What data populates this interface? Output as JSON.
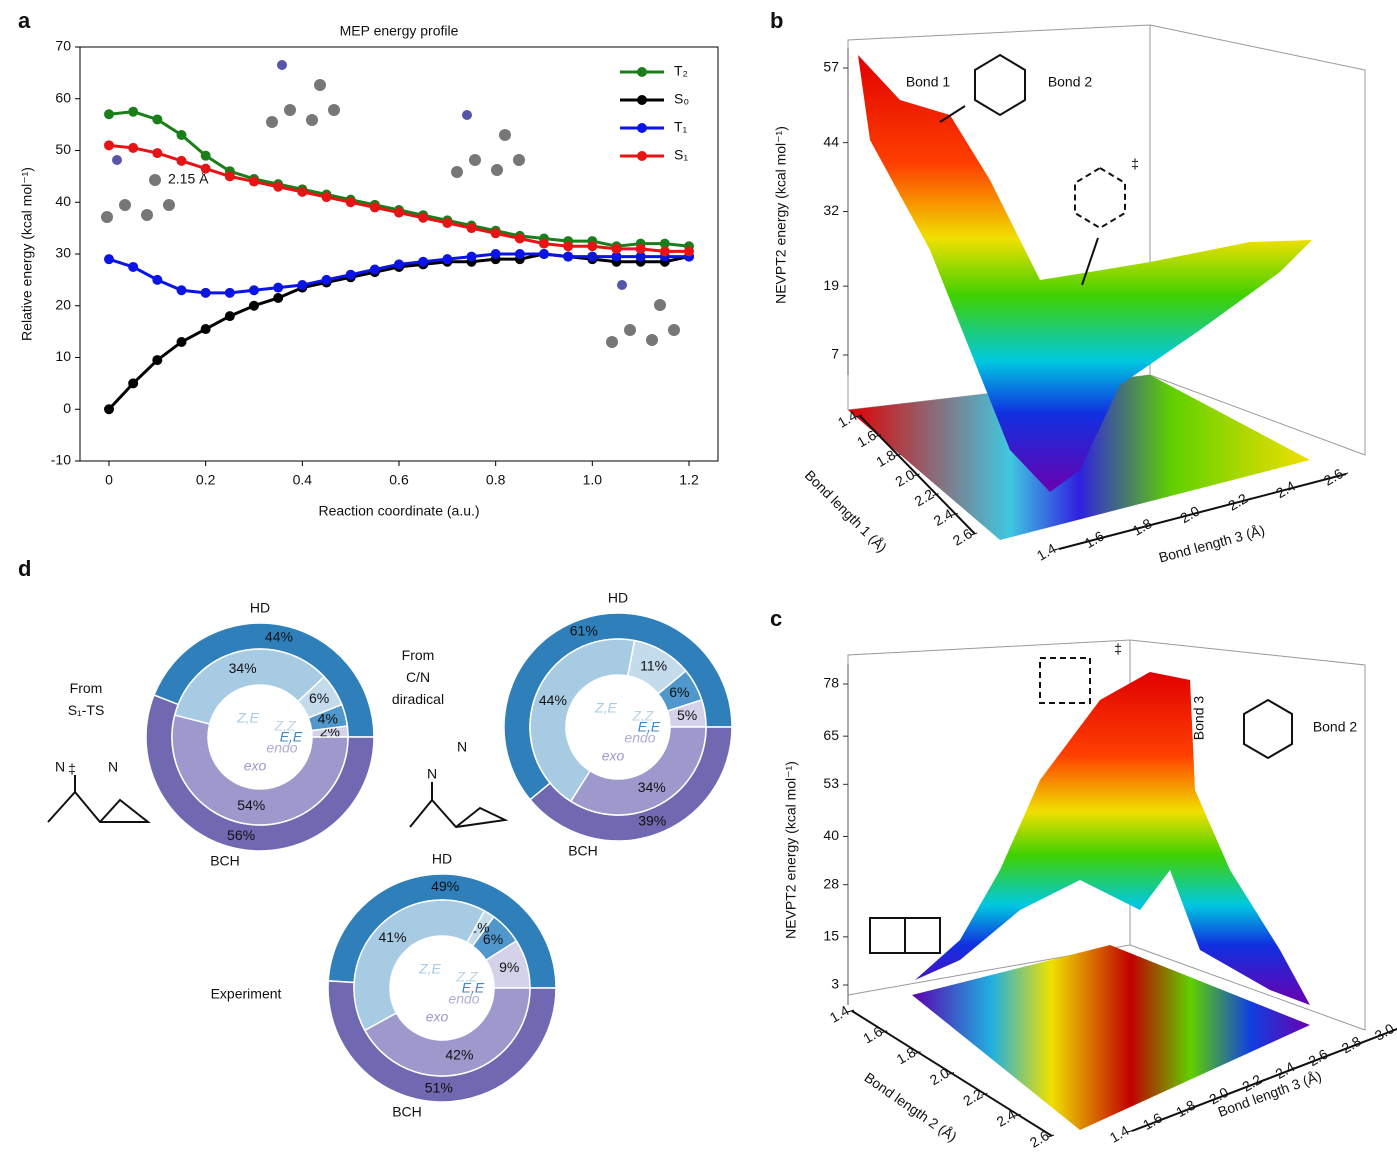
{
  "chart_data": [
    {
      "type": "line",
      "panel": "a",
      "title": "MEP energy profile",
      "xlabel": "Reaction coordinate (a.u.)",
      "ylabel": "Relative energy (kcal mol⁻¹)",
      "x": [
        0,
        0.05,
        0.1,
        0.15,
        0.2,
        0.25,
        0.3,
        0.35,
        0.4,
        0.45,
        0.5,
        0.55,
        0.6,
        0.65,
        0.7,
        0.75,
        0.8,
        0.85,
        0.9,
        0.95,
        1.0,
        1.05,
        1.1,
        1.15,
        1.2
      ],
      "series": [
        {
          "name": "T₂",
          "color": "#1a7f1a",
          "values": [
            57,
            57.5,
            56,
            53,
            49,
            46,
            44.5,
            43.5,
            42.5,
            41.5,
            40.5,
            39.5,
            38.5,
            37.5,
            36.5,
            35.5,
            34.5,
            33.5,
            33,
            32.5,
            32.5,
            31.5,
            32,
            32,
            31.5
          ]
        },
        {
          "name": "S₀",
          "color": "#000000",
          "values": [
            0,
            5,
            9.5,
            13,
            15.5,
            18,
            20,
            21.5,
            23.5,
            24.5,
            25.5,
            26.5,
            27.5,
            28,
            28.5,
            28.5,
            29,
            29,
            30,
            29.5,
            29,
            28.5,
            28.5,
            28.5,
            29.5
          ]
        },
        {
          "name": "T₁",
          "color": "#0a14e6",
          "values": [
            29,
            27.5,
            25,
            23,
            22.5,
            22.5,
            23,
            23.5,
            24,
            25,
            26,
            27,
            28,
            28.5,
            29,
            29.5,
            30,
            30,
            30,
            29.5,
            29.5,
            29.5,
            29.5,
            29.5,
            29.5
          ]
        },
        {
          "name": "S₁",
          "color": "#e61414",
          "values": [
            51,
            50.5,
            49.5,
            48,
            46.5,
            45,
            44,
            43,
            42,
            41,
            40,
            39,
            38,
            37,
            36,
            35,
            34,
            33,
            32,
            31.5,
            31.5,
            31,
            31,
            30.5,
            30.5
          ]
        }
      ],
      "xlim": [
        -0.06,
        1.26
      ],
      "xticks": [
        0,
        0.2,
        0.4,
        0.6,
        0.8,
        {
          "value": 1,
          "label": "1.0"
        },
        1.2
      ],
      "ylim": [
        -10,
        70
      ],
      "yticks": [
        -10,
        0,
        10,
        20,
        30,
        40,
        50,
        60,
        70
      ],
      "legend": "upper right",
      "annotations": [
        "2.15 Å"
      ]
    },
    {
      "type": "surface3d",
      "panel": "b",
      "zlabel": "NEVPT2 energy (kcal mol⁻¹)",
      "xlabel": "Bond length 1 (Å)",
      "ylabel": "Bond length 3 (Å)",
      "xlim": [
        1.4,
        2.6
      ],
      "xticks": [
        1.4,
        1.6,
        1.8,
        {
          "value": 2,
          "label": "2.0"
        },
        2.2,
        2.4,
        2.6
      ],
      "ylim": [
        1.4,
        2.6
      ],
      "yticks": [
        1.4,
        1.6,
        1.8,
        {
          "value": 2,
          "label": "2.0"
        },
        2.2,
        2.4,
        2.6
      ],
      "zlim": [
        7,
        57
      ],
      "zticks": [
        7,
        19,
        32,
        44,
        57
      ],
      "annotations": [
        "Bond 1",
        "Bond 2",
        "‡"
      ]
    },
    {
      "type": "surface3d",
      "panel": "c",
      "zlabel": "NEVPT2 energy (kcal mol⁻¹)",
      "xlabel": "Bond length 2 (Å)",
      "ylabel": "Bond length 3 (Å)",
      "xlim": [
        1.4,
        2.6
      ],
      "xticks": [
        1.4,
        1.6,
        1.8,
        {
          "value": 2,
          "label": "2.0"
        },
        2.2,
        2.4,
        2.6
      ],
      "ylim": [
        1.4,
        3.0
      ],
      "yticks": [
        1.4,
        1.6,
        1.8,
        {
          "value": 2,
          "label": "2.0"
        },
        2.2,
        2.4,
        2.6,
        2.8,
        {
          "value": 3,
          "label": "3.0"
        }
      ],
      "zlim": [
        3,
        78
      ],
      "zticks": [
        3,
        15,
        28,
        40,
        53,
        65,
        78
      ],
      "annotations": [
        "‡",
        "Bond 3",
        "Bond 2"
      ]
    },
    {
      "type": "donut",
      "panel": "d",
      "title": "From S₁-TS",
      "structure_labels": [
        "‡",
        "N",
        "N"
      ],
      "outer": {
        "categories": [
          "HD",
          "BCH"
        ],
        "colors": [
          "#2e7fba",
          "#7068b0"
        ],
        "values": [
          44,
          56
        ],
        "value_labels": [
          "44%",
          "56%"
        ]
      },
      "inner": {
        "categories": [
          "endo",
          "E,E",
          "Z,Z",
          "Z,E",
          "exo"
        ],
        "colors": [
          "#d4d2ea",
          "#4f97cc",
          "#c4dbec",
          "#a8cbe4",
          "#9d99cc"
        ],
        "values": [
          2,
          4,
          6,
          34,
          54
        ],
        "value_labels": [
          "2%",
          "4%",
          "6%",
          "34%",
          "54%"
        ]
      }
    },
    {
      "type": "donut",
      "title": "From C/N diradical",
      "structure_labels": [
        "N",
        "N"
      ],
      "outer": {
        "categories": [
          "HD",
          "BCH"
        ],
        "colors": [
          "#2e7fba",
          "#7068b0"
        ],
        "values": [
          61,
          39
        ],
        "value_labels": [
          "61%",
          "39%"
        ]
      },
      "inner": {
        "categories": [
          "endo",
          "E,E",
          "Z,Z",
          "Z,E",
          "exo"
        ],
        "colors": [
          "#d4d2ea",
          "#4f97cc",
          "#c4dbec",
          "#a8cbe4",
          "#9d99cc"
        ],
        "values": [
          5,
          6,
          11,
          44,
          34
        ],
        "value_labels": [
          "5%",
          "6%",
          "11%",
          "44%",
          "34%"
        ]
      }
    },
    {
      "type": "donut",
      "title": "Experiment",
      "outer": {
        "categories": [
          "HD",
          "BCH"
        ],
        "colors": [
          "#2e7fba",
          "#7068b0"
        ],
        "values": [
          49,
          51
        ],
        "value_labels": [
          "49%",
          "51%"
        ]
      },
      "inner": {
        "categories": [
          "endo",
          "E,E",
          "Z,Z",
          "Z,E",
          "exo"
        ],
        "colors": [
          "#d4d2ea",
          "#4f97cc",
          "#c4dbec",
          "#a8cbe4",
          "#9d99cc"
        ],
        "values": [
          9,
          6,
          2,
          41,
          42
        ],
        "value_labels": [
          "9%",
          "6%",
          "2%",
          "41%",
          "42%"
        ]
      }
    }
  ]
}
